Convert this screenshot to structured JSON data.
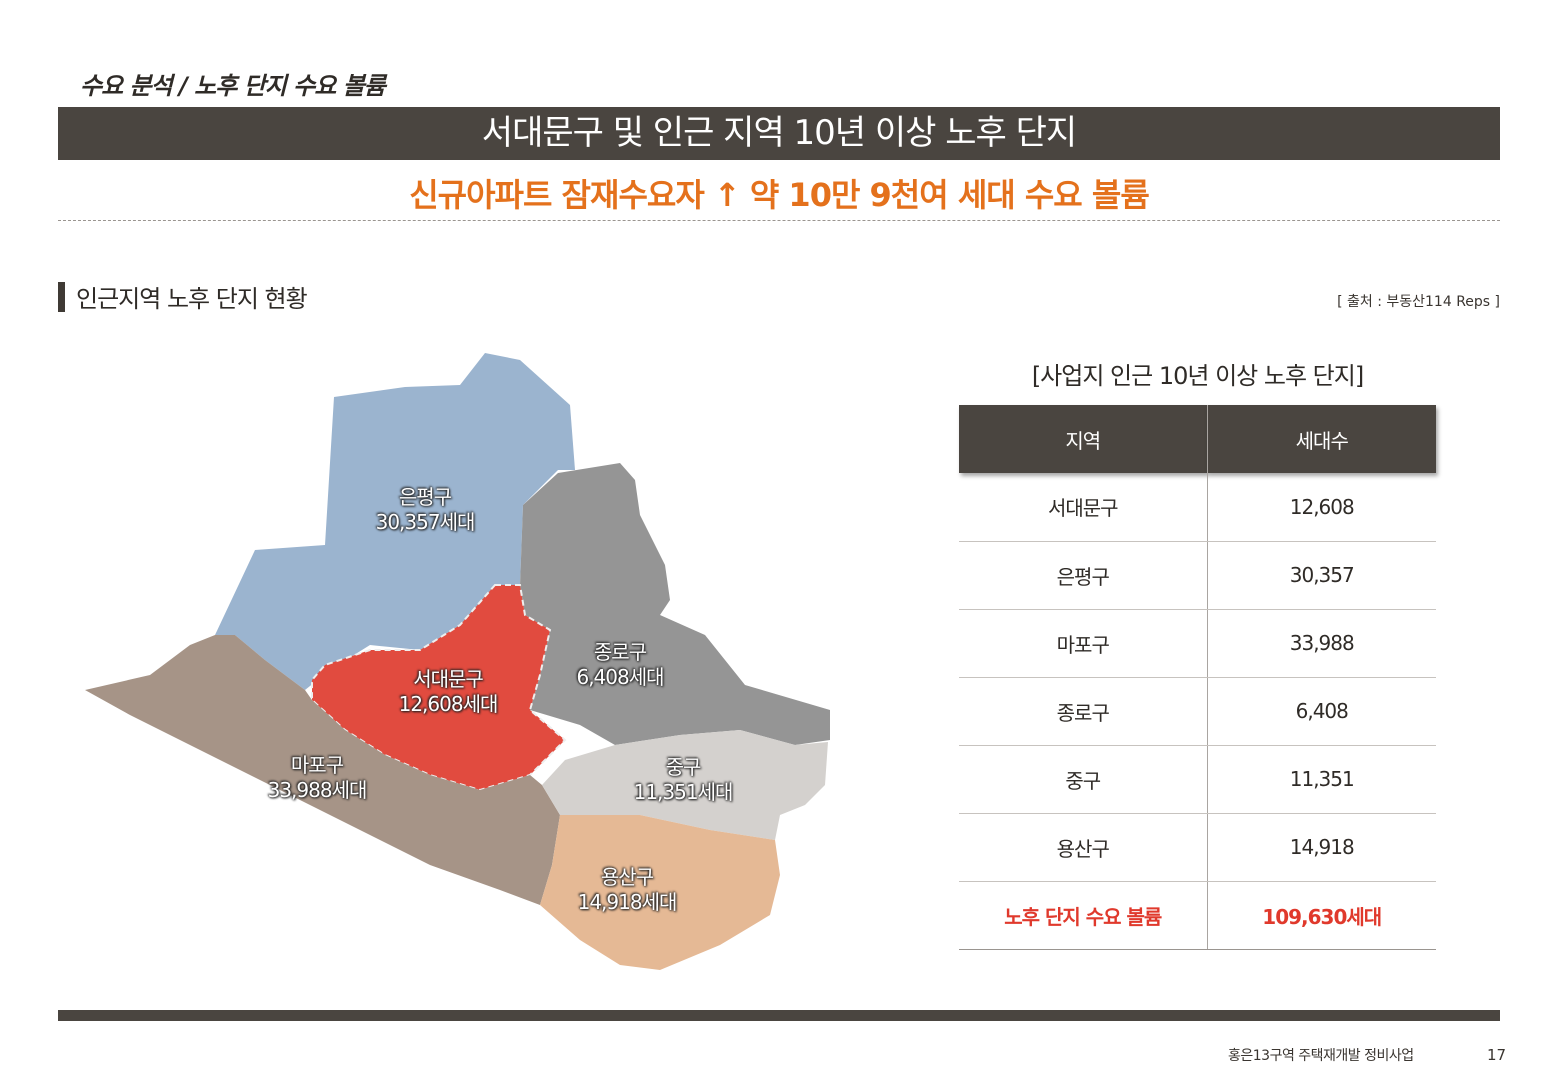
{
  "header": {
    "breadcrumb": "수요 분석 / 노후 단지 수요 볼륨",
    "title": "서대문구 및 인근 지역 10년 이상 노후 단지",
    "headline": "신규아파트 잠재수요자 ↑ 약 10만 9천여 세대 수요 볼륨"
  },
  "section": {
    "title": "인근지역 노후 단지 현황",
    "source": "[ 출처 : 부동산114 Reps ]"
  },
  "map": {
    "districts": [
      {
        "name": "은평구",
        "value": "30,357세대",
        "color": "#9bb4cf"
      },
      {
        "name": "종로구",
        "value": "6,408세대",
        "color": "#959595"
      },
      {
        "name": "서대문구",
        "value": "12,608세대",
        "color": "#e14b3f"
      },
      {
        "name": "마포구",
        "value": "33,988세대",
        "color": "#a69487"
      },
      {
        "name": "중구",
        "value": "11,351세대",
        "color": "#d4d1ce"
      },
      {
        "name": "용산구",
        "value": "14,918세대",
        "color": "#e5b995"
      }
    ]
  },
  "table": {
    "caption": "[사업지 인근 10년 이상 노후 단지]",
    "headers": [
      "지역",
      "세대수"
    ],
    "rows": [
      [
        "서대문구",
        "12,608"
      ],
      [
        "은평구",
        "30,357"
      ],
      [
        "마포구",
        "33,988"
      ],
      [
        "종로구",
        "6,408"
      ],
      [
        "중구",
        "11,351"
      ],
      [
        "용산구",
        "14,918"
      ]
    ],
    "total": [
      "노후 단지 수요 볼륨",
      "109,630세대"
    ],
    "total_color": "#e0392c"
  },
  "footer": {
    "project": "홍은13구역 주택재개발 정비사업",
    "page": "17"
  }
}
